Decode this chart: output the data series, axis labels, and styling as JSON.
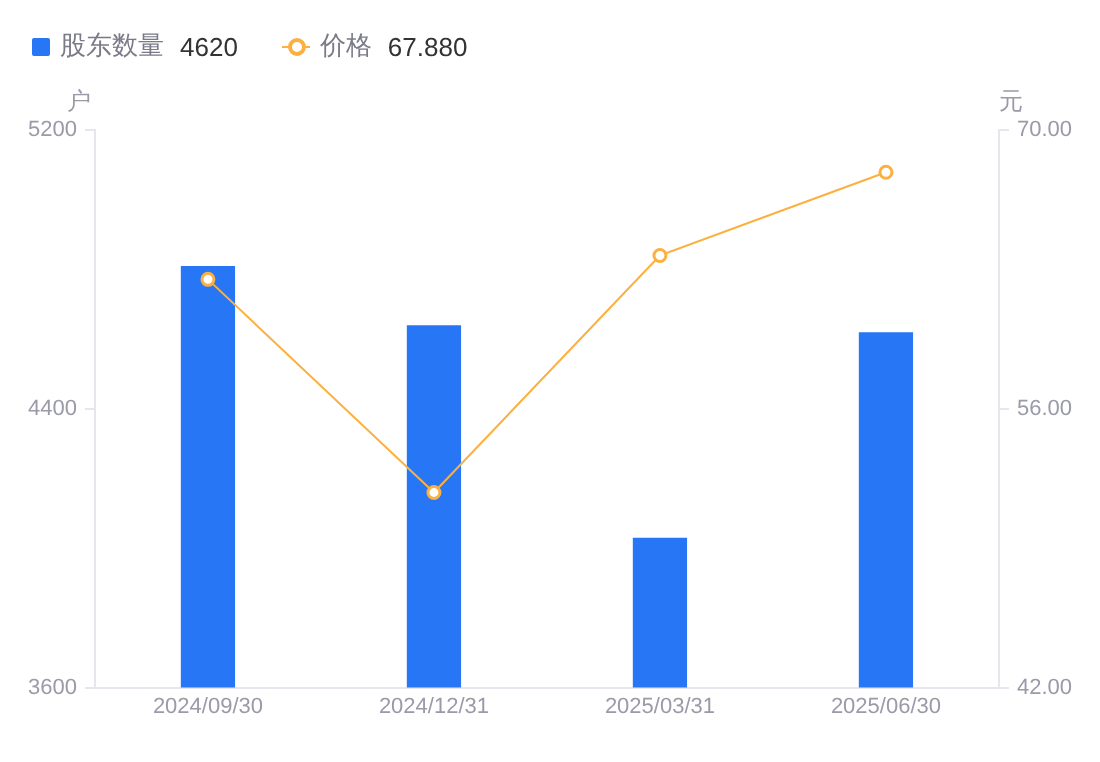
{
  "chart_data": {
    "type": "bar",
    "ylabel": "户",
    "y2label": "元",
    "categories": [
      "2024/09/30",
      "2024/12/31",
      "2025/03/31",
      "2025/06/30"
    ],
    "series": [
      {
        "name": "股东数量",
        "color": "#2776f5",
        "values": [
          4810,
          4640,
          4030,
          4620
        ]
      },
      {
        "name": "价格",
        "type": "line",
        "axis": "y2",
        "color": "#fbb040",
        "marker": "circle",
        "values": [
          62.5,
          51.8,
          63.7,
          67.88
        ]
      }
    ],
    "annotations": [
      "4620",
      "67.880"
    ],
    "ylim": [
      3600,
      5200
    ],
    "yticks": [
      3600,
      4400,
      5200
    ],
    "y2lim": [
      42,
      70
    ],
    "y2ticks": [
      {
        "value": 42,
        "label": "42.00"
      },
      {
        "value": 56,
        "label": "56.00"
      },
      {
        "value": 70,
        "label": "70.00"
      }
    ],
    "grid": false,
    "legend": "top left"
  }
}
